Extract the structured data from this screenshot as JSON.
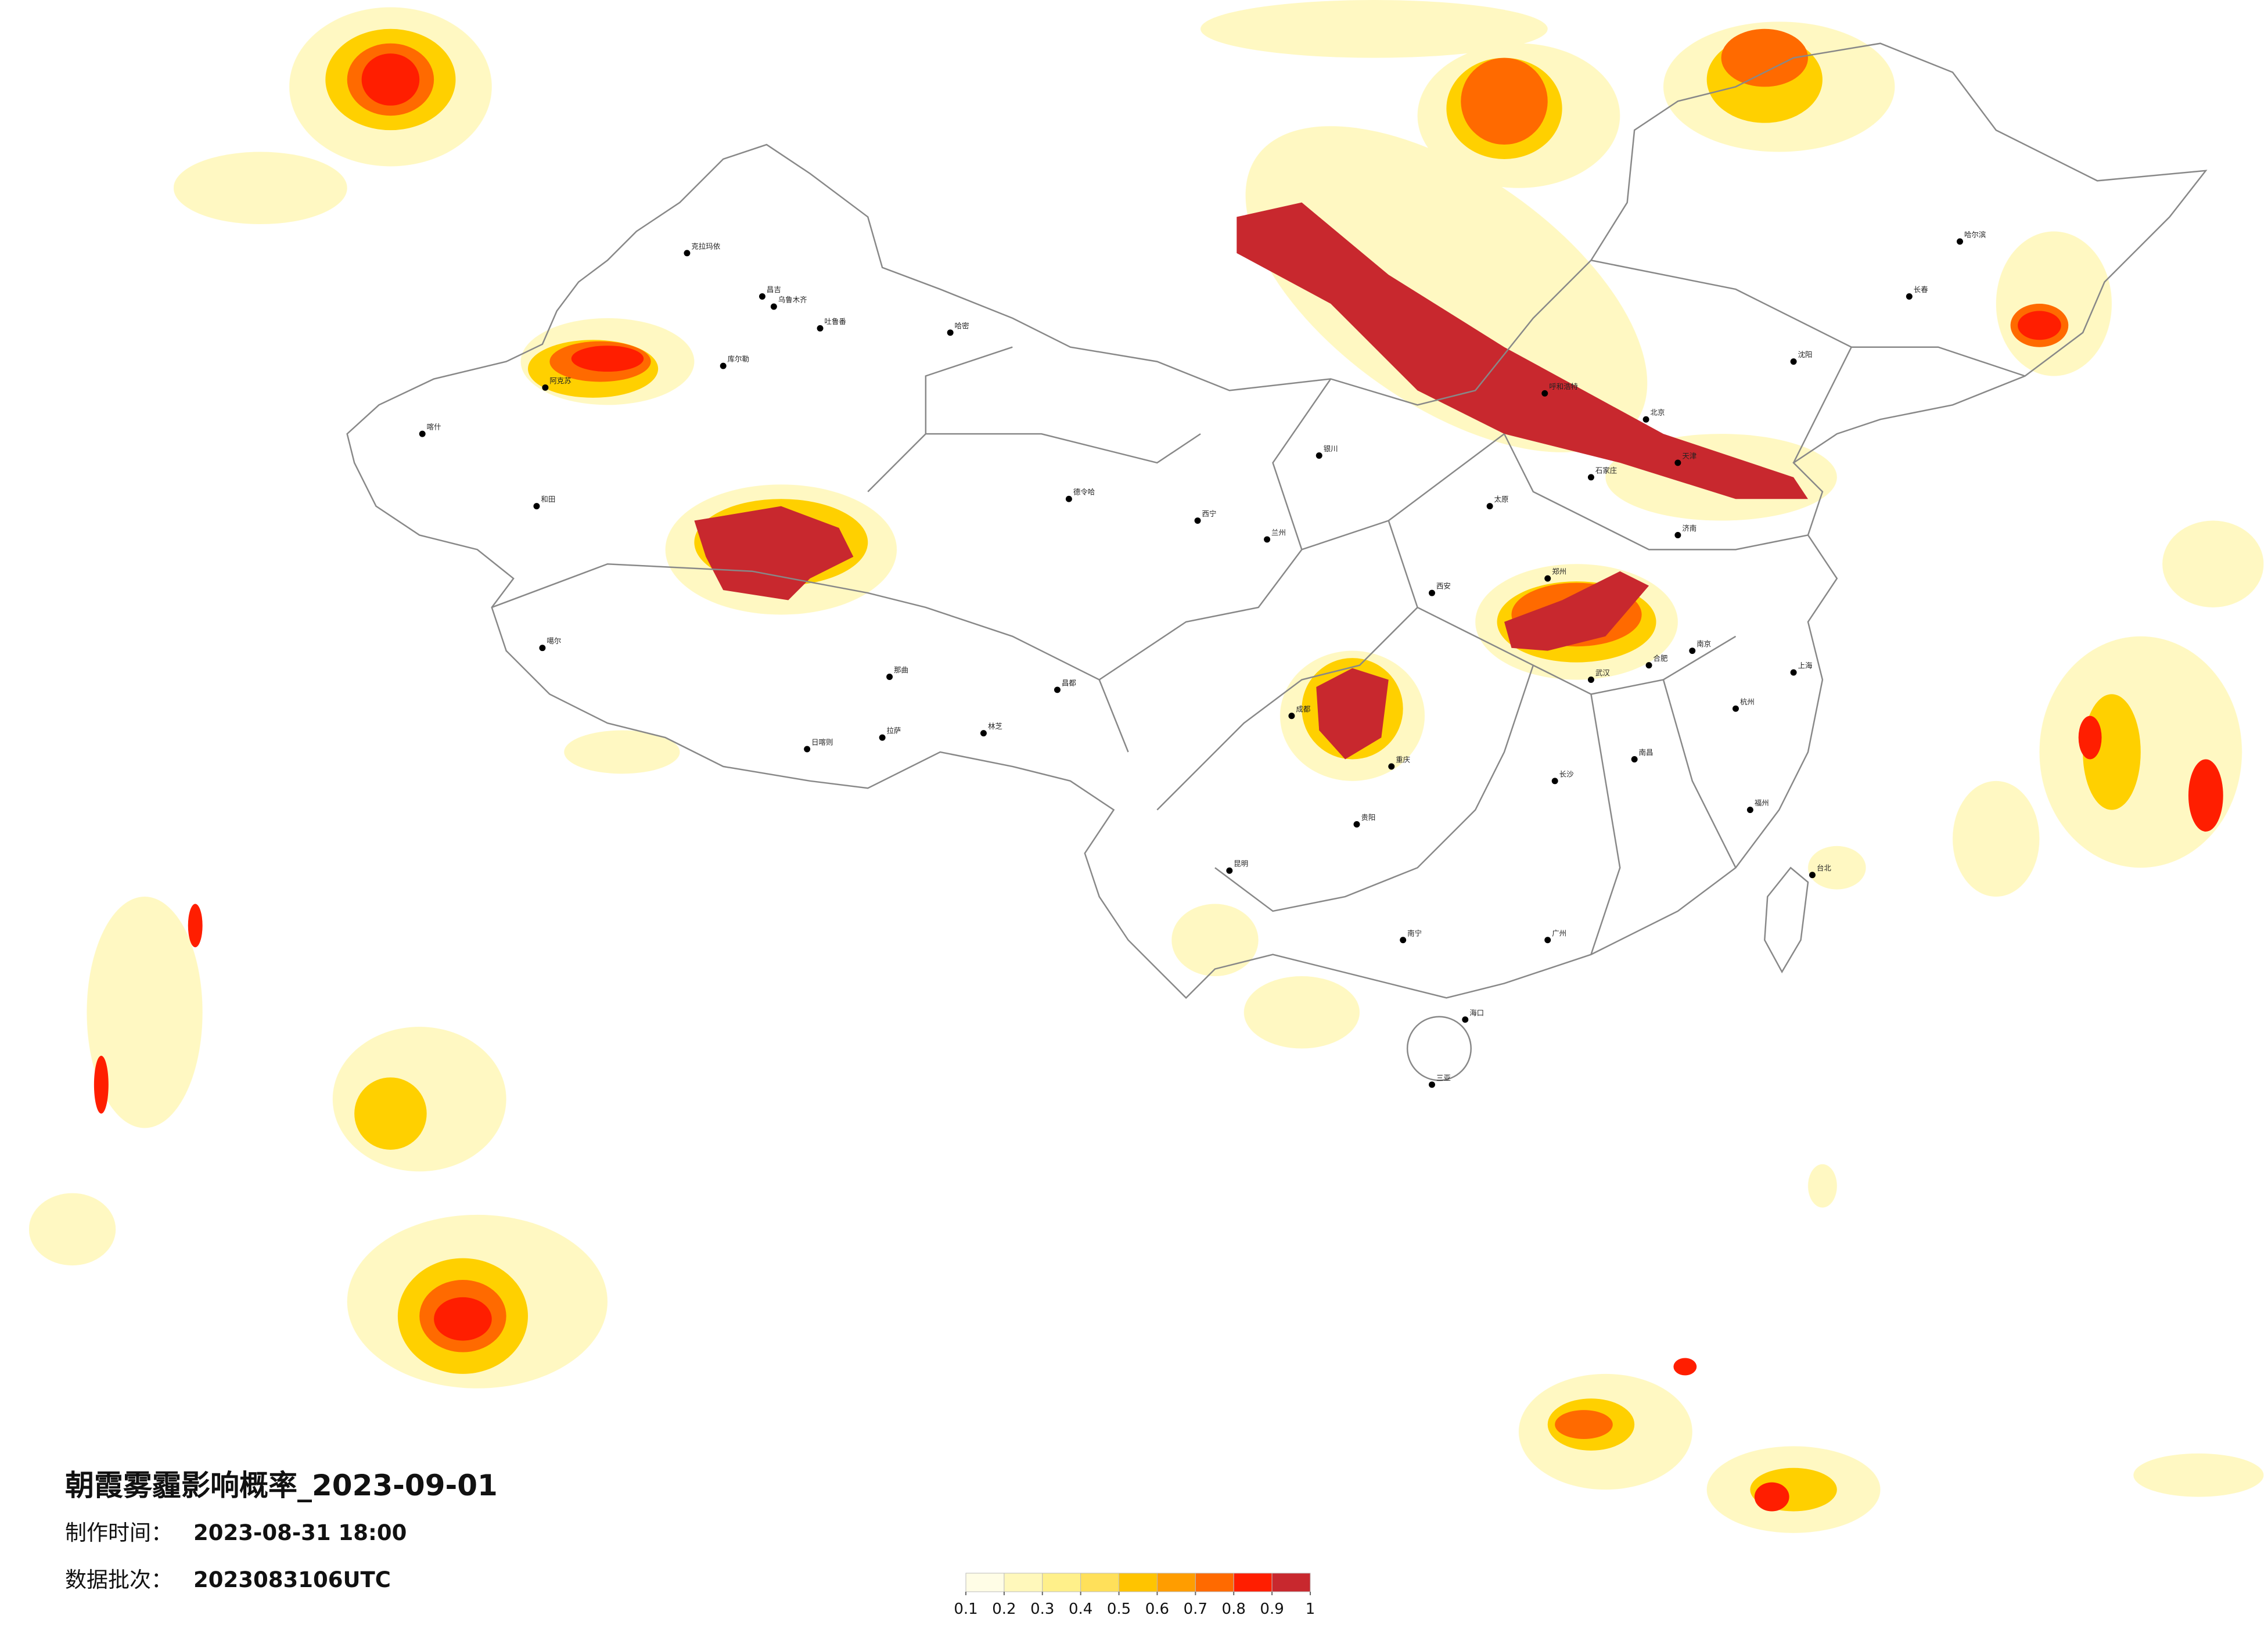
{
  "header": {
    "title": "朝霞雾霾影响概率_2023-09-01",
    "time_label": "制作时间：",
    "time_value": "2023-08-31 18:00",
    "batch_label": "数据批次：",
    "batch_value": "2023083106UTC"
  },
  "legend": {
    "ticks": [
      0.1,
      0.2,
      0.3,
      0.4,
      0.5,
      0.6,
      0.7,
      0.8,
      0.9,
      1
    ],
    "colors": [
      "#fffde6",
      "#fff8bb",
      "#fff08a",
      "#ffe05a",
      "#ffc400",
      "#ff9d00",
      "#ff6a00",
      "#ff1e00",
      "#c8282e"
    ]
  },
  "cities": [
    "克拉玛依",
    "昌吉",
    "乌鲁木齐",
    "吐鲁番",
    "哈密",
    "库尔勒",
    "阿克苏",
    "喀什",
    "和田",
    "噶尔",
    "日喀则",
    "拉萨",
    "林芝",
    "那曲",
    "昌都",
    "德令哈",
    "西宁",
    "兰州",
    "银川",
    "呼和浩特",
    "北京",
    "天津",
    "石家庄",
    "太原",
    "济南",
    "郑州",
    "西安",
    "成都",
    "重庆",
    "武汉",
    "长沙",
    "南昌",
    "贵阳",
    "昆明",
    "南宁",
    "广州",
    "福州",
    "杭州",
    "上海",
    "南京",
    "合肥",
    "沈阳",
    "长春",
    "哈尔滨",
    "海口",
    "三亚",
    "台北"
  ]
}
